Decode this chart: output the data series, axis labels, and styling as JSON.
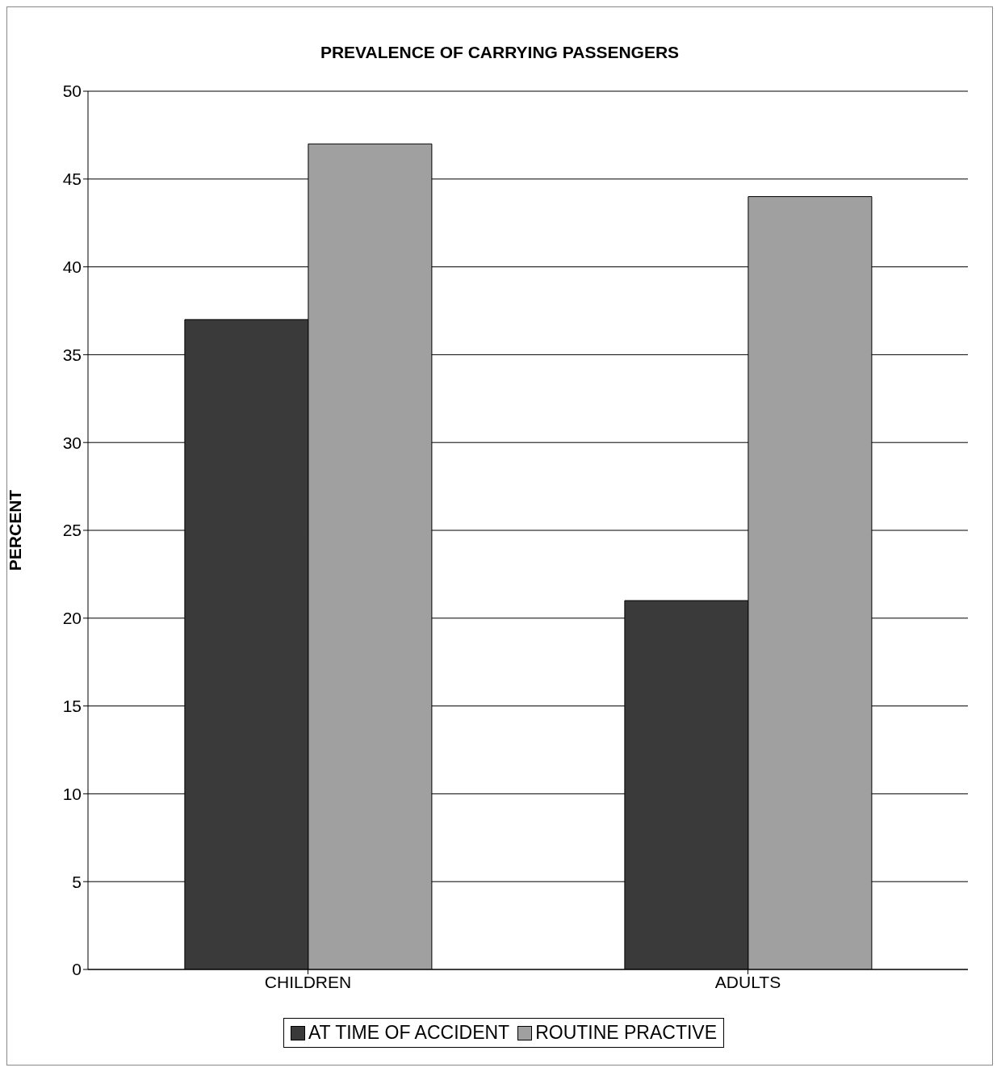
{
  "chart_data": {
    "type": "bar",
    "title": "PREVALENCE OF CARRYING PASSENGERS",
    "ylabel": "PERCENT",
    "categories": [
      "CHILDREN",
      "ADULTS"
    ],
    "series": [
      {
        "name": "AT TIME OF ACCIDENT",
        "color": "#3a3a3a",
        "values": [
          37,
          21
        ]
      },
      {
        "name": "ROUTINE PRACTIVE",
        "color": "#a0a0a0",
        "values": [
          47,
          44
        ]
      }
    ],
    "ylim": [
      0,
      50
    ],
    "yticks": [
      0,
      5,
      10,
      15,
      20,
      25,
      30,
      35,
      40,
      45,
      50
    ],
    "grid": "y",
    "legend": "bottom"
  }
}
